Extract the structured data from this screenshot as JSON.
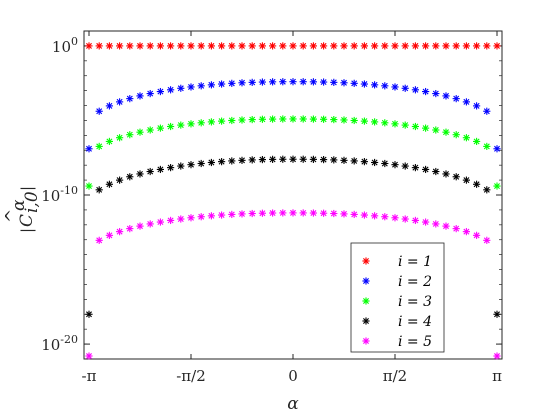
{
  "chart_data": {
    "type": "scatter",
    "title": "",
    "xlabel": "α",
    "ylabel": "|Ĉ^α_{i,0}|",
    "ylabel_parts": {
      "main": "C",
      "super": "α",
      "sub": "i,0"
    },
    "yscale": "log",
    "xlim": [
      -3.1416,
      3.1416
    ],
    "ylim": [
      1e-21,
      10
    ],
    "xticks": [
      {
        "value": -3.1416,
        "label": "-π"
      },
      {
        "value": -1.5708,
        "label": "-π/2"
      },
      {
        "value": 0,
        "label": "0"
      },
      {
        "value": 1.5708,
        "label": "π/2"
      },
      {
        "value": 3.1416,
        "label": "π"
      }
    ],
    "yticks": [
      {
        "value": 1,
        "base": "10",
        "exp": "0"
      },
      {
        "value": 1e-10,
        "base": "10",
        "exp": "-10"
      },
      {
        "value": 1e-20,
        "base": "10",
        "exp": "-20"
      }
    ],
    "grid": false,
    "legend_position": "bottom-right",
    "marker": "asterisk",
    "n_points": 41,
    "series": [
      {
        "name": "i = 1",
        "color": "#ff0000",
        "edge_log10": 0.0,
        "peak_log10": 0.0,
        "endpoint_log10": 0.0
      },
      {
        "name": "i = 2",
        "color": "#0000ff",
        "edge_log10": -5.2,
        "peak_log10": -2.4,
        "endpoint_log10": -6.9
      },
      {
        "name": "i = 3",
        "color": "#00ff00",
        "edge_log10": -7.5,
        "peak_log10": -4.9,
        "endpoint_log10": -9.4
      },
      {
        "name": "i = 4",
        "color": "#000000",
        "edge_log10": -10.5,
        "peak_log10": -7.6,
        "endpoint_log10": -18.0
      },
      {
        "name": "i = 5",
        "color": "#ff00ff",
        "edge_log10": -13.8,
        "peak_log10": -11.2,
        "endpoint_log10": -20.8
      }
    ]
  }
}
